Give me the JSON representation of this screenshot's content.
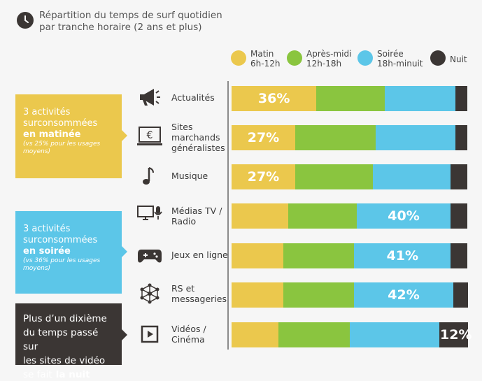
{
  "header": {
    "title_line1": "Répartition du temps de surf quotidien",
    "title_line2": "par tranche horaire (2 ans et plus)"
  },
  "legend": [
    {
      "name": "Matin",
      "sub": "6h-12h",
      "color": "#ebc84d"
    },
    {
      "name": "Après-midi",
      "sub": "12h-18h",
      "color": "#8ac53f"
    },
    {
      "name": "Soirée",
      "sub": "18h-minuit",
      "color": "#5cc6e8"
    },
    {
      "name": "Nuit",
      "sub": "",
      "color": "#3b3634"
    }
  ],
  "sideboxes": [
    {
      "text": "3 activités\nsurconsommées",
      "bold": "en matinée",
      "note": "(vs 25% pour les usages\nmoyens)",
      "color": "#ebc84d"
    },
    {
      "text": "3 activités\nsurconsommées",
      "bold": "en soirée",
      "note": "(vs 36% pour les usages\nmoyens)",
      "color": "#5cc6e8"
    },
    {
      "text": "Plus d’un dixième\ndu temps passé sur\nles sites de vidéo\nse fait",
      "bold": "la nuit",
      "note": "",
      "color": "#3b3634"
    }
  ],
  "chart_data": {
    "type": "bar",
    "orientation": "horizontal",
    "stacked": true,
    "title": "Répartition du temps de surf quotidien par tranche horaire (2 ans et plus)",
    "categories": [
      "Actualités",
      "Sites\nmarchands\ngénéralistes",
      "Musique",
      "Médias TV /\nRadio",
      "Jeux en ligne",
      "RS et\nmessageries",
      "Vidéos /\nCinéma"
    ],
    "category_icons": [
      "megaphone-icon",
      "euro-screen-icon",
      "music-note-icon",
      "tv-microphone-icon",
      "gamepad-icon",
      "network-icon",
      "video-play-icon"
    ],
    "series": [
      {
        "name": "Matin 6h-12h",
        "values": [
          36,
          27,
          27,
          24,
          22,
          22,
          20
        ]
      },
      {
        "name": "Après-midi 12h-18h",
        "values": [
          29,
          34,
          33,
          29,
          30,
          30,
          30
        ]
      },
      {
        "name": "Soirée 18h-minuit",
        "values": [
          30,
          34,
          33,
          40,
          41,
          42,
          38
        ]
      },
      {
        "name": "Nuit",
        "values": [
          5,
          5,
          7,
          7,
          7,
          6,
          12
        ]
      }
    ],
    "data_labels": [
      {
        "category": 0,
        "series": 0,
        "text": "36%"
      },
      {
        "category": 1,
        "series": 0,
        "text": "27%"
      },
      {
        "category": 2,
        "series": 0,
        "text": "27%"
      },
      {
        "category": 3,
        "series": 2,
        "text": "40%"
      },
      {
        "category": 4,
        "series": 2,
        "text": "41%"
      },
      {
        "category": 5,
        "series": 2,
        "text": "42%"
      },
      {
        "category": 6,
        "series": 3,
        "text": "12%"
      }
    ],
    "xlim": [
      0,
      100
    ]
  }
}
